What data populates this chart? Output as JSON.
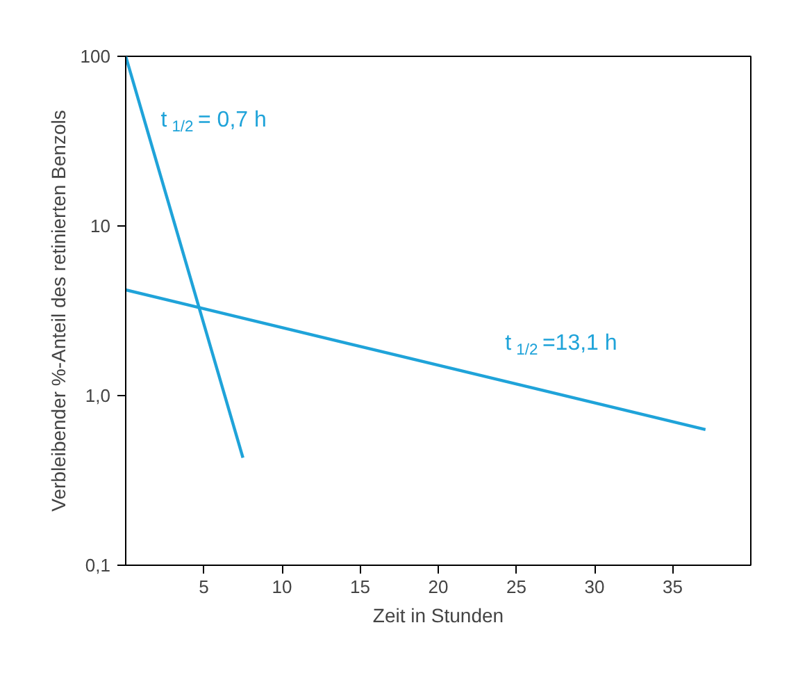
{
  "chart_data": {
    "type": "line",
    "xlabel": "Zeit in Stunden",
    "ylabel": "Verbleibender %-Anteil des retinierten Benzols",
    "log": "y",
    "grid": false,
    "xlim": [
      0,
      40
    ],
    "xticks": [
      5,
      10,
      15,
      20,
      25,
      30,
      35
    ],
    "ylim": [
      0.1,
      100
    ],
    "yticks": [
      {
        "value": 0.1,
        "label": "0,1"
      },
      {
        "value": 1,
        "label": "1,0"
      },
      {
        "value": 10,
        "label": "10"
      },
      {
        "value": 100,
        "label": "100"
      }
    ],
    "series": [
      {
        "color": "#1fa3d9",
        "x": [
          0,
          7.5
        ],
        "values": [
          100,
          0.43
        ]
      },
      {
        "color": "#1fa3d9",
        "x": [
          0,
          37.1
        ],
        "values": [
          4.2,
          0.63
        ]
      }
    ],
    "annotations": [
      "t$_{1/2}$ = 0,7 h",
      "t$_{1/2}$ =13,1 h"
    ]
  }
}
